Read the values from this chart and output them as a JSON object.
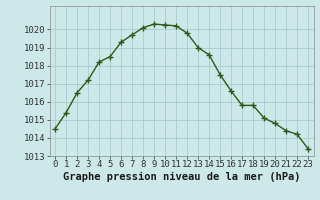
{
  "x": [
    0,
    1,
    2,
    3,
    4,
    5,
    6,
    7,
    8,
    9,
    10,
    11,
    12,
    13,
    14,
    15,
    16,
    17,
    18,
    19,
    20,
    21,
    22,
    23
  ],
  "y": [
    1014.5,
    1015.4,
    1016.5,
    1017.2,
    1018.2,
    1018.5,
    1019.3,
    1019.7,
    1020.1,
    1020.3,
    1020.25,
    1020.2,
    1019.8,
    1019.0,
    1018.6,
    1017.5,
    1016.6,
    1015.8,
    1015.8,
    1015.1,
    1014.8,
    1014.4,
    1014.2,
    1013.4
  ],
  "line_color": "#2d5a1b",
  "marker": "+",
  "bg_color": "#cce8e8",
  "grid_color": "#aacccc",
  "xlabel": "Graphe pression niveau de la mer (hPa)",
  "ylim_min": 1013,
  "ylim_max": 1021,
  "yticks": [
    1013,
    1014,
    1015,
    1016,
    1017,
    1018,
    1019,
    1020
  ],
  "xticks": [
    0,
    1,
    2,
    3,
    4,
    5,
    6,
    7,
    8,
    9,
    10,
    11,
    12,
    13,
    14,
    15,
    16,
    17,
    18,
    19,
    20,
    21,
    22,
    23
  ],
  "tick_fontsize": 6.5,
  "xlabel_fontsize": 7.5,
  "linewidth": 1.0,
  "markersize": 4,
  "markeredgewidth": 1.0
}
